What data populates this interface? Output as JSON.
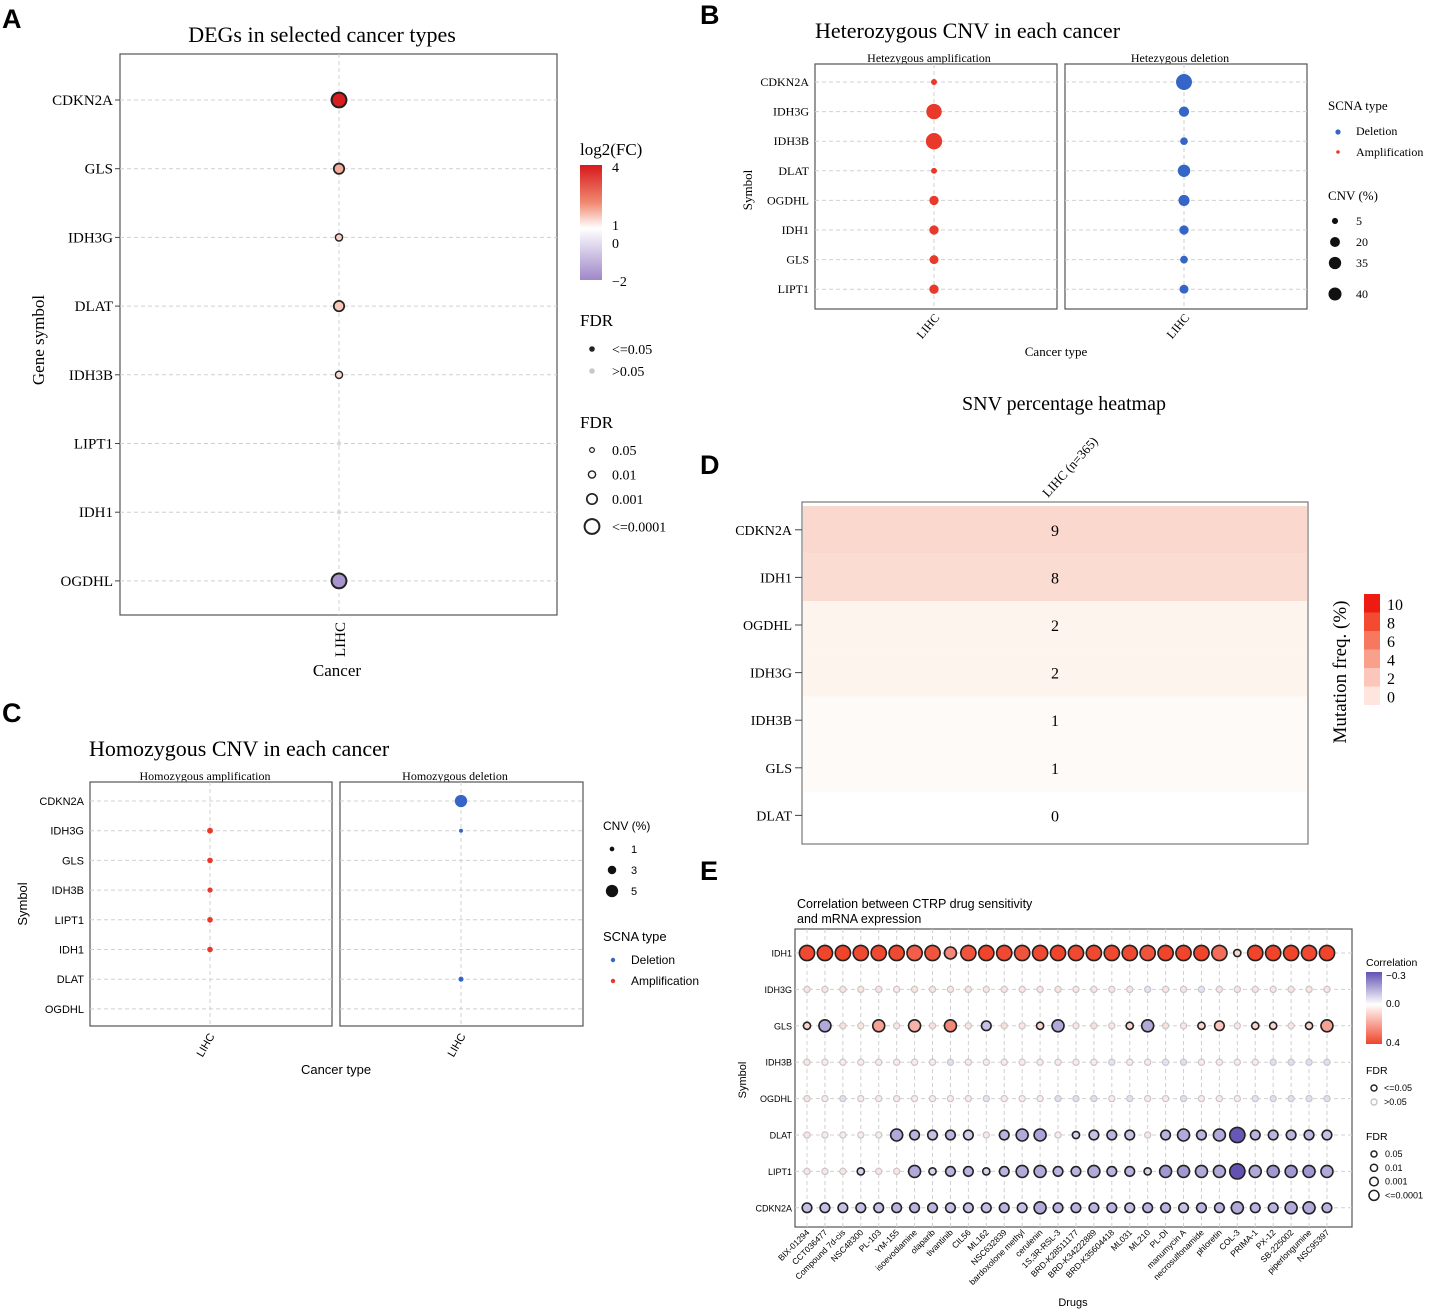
{
  "panel_labels": [
    "A",
    "B",
    "C",
    "D",
    "E"
  ],
  "colors": {
    "amplification": "#e8392a",
    "deletion": "#3565c6",
    "fc_high": "#d7191c",
    "fc_low": "#9f87c9",
    "heat_high": "#ee1b12",
    "corr_pos": "#f0442b",
    "corr_neg": "#6352b3"
  },
  "chart_data": [
    {
      "id": "A",
      "type": "scatter",
      "title": "DEGs in selected cancer types",
      "xlabel": "Cancer",
      "ylabel": "Gene symbol",
      "categories": [
        "LIHC"
      ],
      "genes": [
        "CDKN2A",
        "GLS",
        "IDH3G",
        "DLAT",
        "IDH3B",
        "LIPT1",
        "IDH1",
        "OGDHL"
      ],
      "log2fc": [
        3.9,
        0.9,
        0.5,
        0.6,
        0.4,
        0.0,
        0.0,
        -1.8
      ],
      "fdr_sig": [
        true,
        true,
        true,
        true,
        true,
        false,
        false,
        true
      ],
      "fdr_level": [
        "<=0.0001",
        "0.001",
        "0.01",
        "0.001",
        "0.01",
        "0.05",
        "0.05",
        "<=0.0001"
      ],
      "legend_color": {
        "title": "log2(FC)",
        "ticks": [
          "4",
          "1",
          "0",
          "−2"
        ],
        "range": [
          -2,
          4
        ]
      },
      "legend_fdr_sig": {
        "title": "FDR",
        "items": [
          "<=0.05",
          ">0.05"
        ]
      },
      "legend_fdr_size": {
        "title": "FDR",
        "items": [
          "0.05",
          "0.01",
          "0.001",
          "<=0.0001"
        ]
      }
    },
    {
      "id": "B",
      "type": "scatter",
      "title": "Heterozygous CNV in each cancer",
      "xlabel": "Cancer type",
      "ylabel": "Symbol",
      "facets": [
        "Hetezygous amplification",
        "Hetezygous deletion"
      ],
      "categories": [
        "LIHC"
      ],
      "genes": [
        "CDKN2A",
        "IDH3G",
        "IDH3B",
        "DLAT",
        "OGDHL",
        "IDH1",
        "GLS",
        "LIPT1"
      ],
      "amplification_pct": [
        2,
        35,
        40,
        2,
        9,
        9,
        8,
        9
      ],
      "deletion_pct": [
        38,
        12,
        5,
        20,
        15,
        9,
        5,
        8
      ],
      "legend_type": {
        "title": "SCNA type",
        "items": [
          "Deletion",
          "Amplification"
        ]
      },
      "legend_size": {
        "title": "CNV (%)",
        "items": [
          "5",
          "20",
          "35",
          "40"
        ]
      }
    },
    {
      "id": "C",
      "type": "scatter",
      "title": "Homozygous CNV in each cancer",
      "xlabel": "Cancer type",
      "ylabel": "Symbol",
      "facets": [
        "Homozygous amplification",
        "Homozygous deletion"
      ],
      "categories": [
        "LIHC"
      ],
      "genes": [
        "CDKN2A",
        "IDH3G",
        "GLS",
        "IDH3B",
        "LIPT1",
        "IDH1",
        "DLAT",
        "OGDHL"
      ],
      "amplification_pct": [
        null,
        1.2,
        1.1,
        0.9,
        1.1,
        1.1,
        null,
        null
      ],
      "deletion_pct": [
        5,
        0.6,
        null,
        null,
        null,
        null,
        1.2,
        null
      ],
      "legend_size": {
        "title": "CNV (%)",
        "items": [
          "1",
          "3",
          "5"
        ]
      },
      "legend_type": {
        "title": "SCNA type",
        "items": [
          "Deletion",
          "Amplification"
        ]
      }
    },
    {
      "id": "D",
      "type": "heatmap",
      "title": "SNV percentage heatmap",
      "column": "LIHC (n=365)",
      "genes": [
        "CDKN2A",
        "IDH1",
        "OGDHL",
        "IDH3G",
        "IDH3B",
        "GLS",
        "DLAT"
      ],
      "values": [
        9,
        8,
        2,
        2,
        1,
        1,
        0
      ],
      "legend": {
        "title": "Mutation freq. (%)",
        "ticks": [
          "10",
          "8",
          "6",
          "4",
          "2",
          "0"
        ],
        "range": [
          0,
          10
        ]
      }
    },
    {
      "id": "E",
      "type": "scatter",
      "title_lines": [
        "Correlation between CTRP drug sensitivity",
        "and mRNA expression"
      ],
      "xlabel": "Drugs",
      "ylabel": "Symbol",
      "genes": [
        "IDH1",
        "IDH3G",
        "GLS",
        "IDH3B",
        "OGDHL",
        "DLAT",
        "LIPT1",
        "CDKN2A"
      ],
      "drugs": [
        "BIX-01294",
        "CCT036477",
        "Compound 7d-cis",
        "NSC48300",
        "PL-103",
        "YM-155",
        "isoevodiamine",
        "olaparib",
        "tivantinib",
        "CIL56",
        "ML162",
        "NSC632839",
        "bardoxolone methyl",
        "cerulenin",
        "1S,3R-RSL-3",
        "BRD-K28511177",
        "BRD-K34222889",
        "BRD-K35604418",
        "ML031",
        "ML210",
        "PL-DI",
        "manumycin A",
        "necrosulfonamide",
        "phloretin",
        "COL-3",
        "PRIMA-1",
        "PX-12",
        "SB-225002",
        "piperlongumine",
        "NSC95397"
      ],
      "correlation": [
        [
          0.32,
          0.33,
          0.33,
          0.32,
          0.32,
          0.32,
          0.28,
          0.3,
          0.2,
          0.3,
          0.33,
          0.32,
          0.3,
          0.32,
          0.34,
          0.32,
          0.32,
          0.32,
          0.32,
          0.3,
          0.33,
          0.35,
          0.33,
          0.25,
          0.05,
          0.34,
          0.33,
          0.33,
          0.32,
          0.33
        ],
        [
          0.02,
          0.02,
          0.02,
          0.02,
          0.02,
          0.01,
          0.02,
          0.02,
          0.02,
          0.02,
          0.02,
          0.02,
          0.02,
          0.02,
          0.02,
          0.02,
          0.02,
          0.02,
          0.02,
          -0.02,
          0.02,
          0.02,
          -0.02,
          0.02,
          0.02,
          0.02,
          0.02,
          0.02,
          0.02,
          0.02
        ],
        [
          0.05,
          -0.12,
          0.03,
          0.02,
          0.15,
          0.02,
          0.12,
          0.03,
          0.2,
          0.02,
          -0.08,
          0.03,
          0.02,
          0.05,
          -0.12,
          0.02,
          0.03,
          0.02,
          0.05,
          -0.12,
          0.03,
          0.02,
          0.05,
          0.08,
          0.02,
          0.05,
          0.05,
          0.02,
          0.05,
          0.15
        ],
        [
          0.02,
          0.01,
          0.01,
          0.01,
          0.01,
          0.01,
          0.01,
          0.01,
          -0.03,
          0.01,
          0.01,
          0.01,
          0.01,
          0.01,
          0.01,
          0.01,
          0.01,
          -0.02,
          0.01,
          0.01,
          -0.02,
          -0.03,
          0.01,
          0.01,
          0.01,
          0.01,
          -0.03,
          -0.03,
          -0.03,
          -0.03
        ],
        [
          0.02,
          0.01,
          -0.03,
          0.01,
          0.01,
          0.01,
          0.01,
          0.01,
          0.01,
          0.01,
          -0.02,
          0.01,
          0.01,
          0.01,
          -0.03,
          -0.03,
          -0.03,
          0.01,
          -0.03,
          0.01,
          0.01,
          -0.03,
          0.01,
          0.01,
          0.01,
          -0.02,
          -0.03,
          -0.03,
          -0.03,
          -0.03
        ],
        [
          0.02,
          0.01,
          0.01,
          0.01,
          0.01,
          -0.12,
          -0.1,
          -0.08,
          -0.1,
          -0.06,
          0.02,
          -0.1,
          -0.12,
          -0.13,
          0.01,
          -0.05,
          -0.08,
          -0.1,
          -0.08,
          0.02,
          -0.1,
          -0.12,
          -0.1,
          -0.12,
          -0.26,
          -0.1,
          -0.1,
          -0.1,
          -0.1,
          -0.08
        ],
        [
          0.02,
          0.02,
          0.02,
          -0.05,
          0.02,
          0.02,
          -0.12,
          -0.05,
          -0.1,
          -0.1,
          -0.05,
          -0.1,
          -0.12,
          -0.12,
          -0.1,
          -0.1,
          -0.12,
          -0.1,
          -0.1,
          -0.05,
          -0.15,
          -0.15,
          -0.12,
          -0.12,
          -0.28,
          -0.12,
          -0.15,
          -0.15,
          -0.15,
          -0.12
        ],
        [
          -0.08,
          -0.08,
          -0.08,
          -0.08,
          -0.08,
          -0.1,
          -0.1,
          -0.1,
          -0.08,
          -0.08,
          -0.08,
          -0.1,
          -0.08,
          -0.12,
          -0.1,
          -0.1,
          -0.1,
          -0.1,
          -0.08,
          -0.1,
          -0.1,
          -0.08,
          -0.1,
          -0.1,
          -0.12,
          -0.1,
          -0.1,
          -0.12,
          -0.12,
          -0.1
        ]
      ],
      "legend_color": {
        "title": "Correlation",
        "ticks": [
          "−0.3",
          "0.0",
          "0.4"
        ],
        "range": [
          -0.3,
          0.4
        ]
      },
      "legend_fdr_sig": {
        "title": "FDR",
        "items": [
          "<=0.05",
          ">0.05"
        ]
      },
      "legend_fdr_size": {
        "title": "FDR",
        "items": [
          "0.05",
          "0.01",
          "0.001",
          "<=0.0001"
        ]
      }
    }
  ]
}
